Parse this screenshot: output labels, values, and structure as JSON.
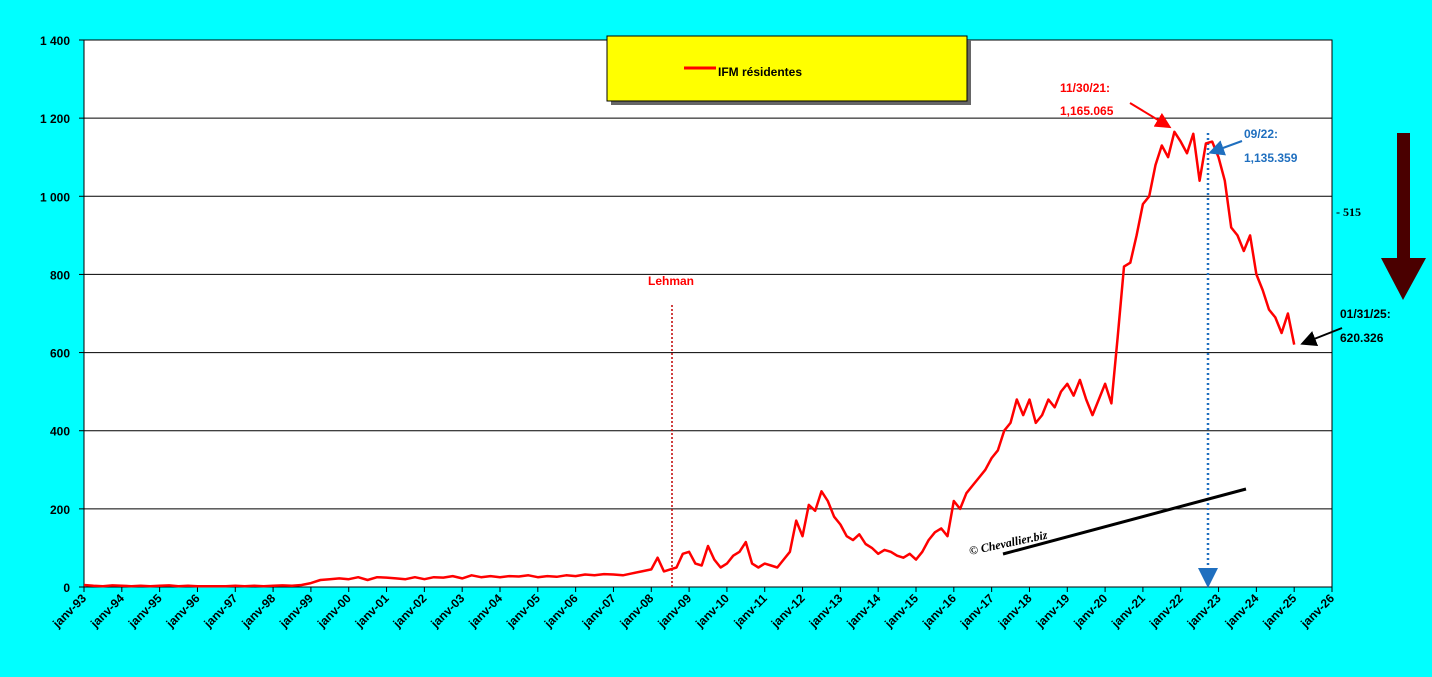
{
  "chart_data": {
    "type": "line",
    "legend": "IFM résidentes",
    "series": [
      {
        "name": "IFM résidentes",
        "color": "#ff0000",
        "x": [
          "1993-01",
          "1993-04",
          "1993-07",
          "1993-10",
          "1994-01",
          "1994-04",
          "1994-07",
          "1994-10",
          "1995-01",
          "1995-04",
          "1995-07",
          "1995-10",
          "1996-01",
          "1996-04",
          "1996-07",
          "1996-10",
          "1997-01",
          "1997-04",
          "1997-07",
          "1997-10",
          "1998-01",
          "1998-04",
          "1998-07",
          "1998-10",
          "1999-01",
          "1999-04",
          "1999-07",
          "1999-10",
          "2000-01",
          "2000-04",
          "2000-07",
          "2000-10",
          "2001-01",
          "2001-04",
          "2001-07",
          "2001-10",
          "2002-01",
          "2002-04",
          "2002-07",
          "2002-10",
          "2003-01",
          "2003-04",
          "2003-07",
          "2003-10",
          "2004-01",
          "2004-04",
          "2004-07",
          "2004-10",
          "2005-01",
          "2005-04",
          "2005-07",
          "2005-10",
          "2006-01",
          "2006-04",
          "2006-07",
          "2006-10",
          "2007-01",
          "2007-04",
          "2007-07",
          "2007-10",
          "2008-01",
          "2008-03",
          "2008-05",
          "2008-07",
          "2008-09",
          "2008-11",
          "2009-01",
          "2009-03",
          "2009-05",
          "2009-07",
          "2009-09",
          "2009-11",
          "2010-01",
          "2010-03",
          "2010-05",
          "2010-07",
          "2010-09",
          "2010-11",
          "2011-01",
          "2011-03",
          "2011-05",
          "2011-07",
          "2011-09",
          "2011-11",
          "2012-01",
          "2012-03",
          "2012-05",
          "2012-07",
          "2012-09",
          "2012-11",
          "2013-01",
          "2013-03",
          "2013-05",
          "2013-07",
          "2013-09",
          "2013-11",
          "2014-01",
          "2014-03",
          "2014-05",
          "2014-07",
          "2014-09",
          "2014-11",
          "2015-01",
          "2015-03",
          "2015-05",
          "2015-07",
          "2015-09",
          "2015-11",
          "2016-01",
          "2016-03",
          "2016-05",
          "2016-07",
          "2016-09",
          "2016-11",
          "2017-01",
          "2017-03",
          "2017-05",
          "2017-07",
          "2017-09",
          "2017-11",
          "2018-01",
          "2018-03",
          "2018-05",
          "2018-07",
          "2018-09",
          "2018-11",
          "2019-01",
          "2019-03",
          "2019-05",
          "2019-07",
          "2019-09",
          "2019-11",
          "2020-01",
          "2020-03",
          "2020-05",
          "2020-07",
          "2020-09",
          "2020-11",
          "2021-01",
          "2021-03",
          "2021-05",
          "2021-07",
          "2021-09",
          "2021-11",
          "2022-01",
          "2022-03",
          "2022-05",
          "2022-07",
          "2022-09",
          "2022-11",
          "2023-01",
          "2023-03",
          "2023-05",
          "2023-07",
          "2023-09",
          "2023-11",
          "2024-01",
          "2024-03",
          "2024-05",
          "2024-07",
          "2024-09",
          "2024-11",
          "2025-01"
        ],
        "values": [
          5,
          3,
          2,
          4,
          3,
          2,
          3,
          2,
          3,
          4,
          2,
          3,
          2,
          2,
          2,
          2,
          3,
          2,
          3,
          2,
          3,
          4,
          3,
          5,
          10,
          18,
          20,
          22,
          20,
          25,
          18,
          25,
          24,
          22,
          20,
          25,
          20,
          25,
          24,
          28,
          22,
          30,
          25,
          28,
          25,
          28,
          27,
          30,
          25,
          28,
          26,
          30,
          28,
          32,
          30,
          33,
          32,
          30,
          35,
          40,
          45,
          75,
          40,
          45,
          50,
          85,
          90,
          60,
          55,
          105,
          70,
          50,
          60,
          80,
          90,
          115,
          60,
          50,
          60,
          55,
          50,
          70,
          90,
          170,
          130,
          210,
          195,
          245,
          220,
          180,
          160,
          130,
          120,
          135,
          110,
          100,
          85,
          95,
          90,
          80,
          75,
          85,
          70,
          90,
          120,
          140,
          150,
          130,
          220,
          200,
          240,
          260,
          280,
          300,
          330,
          350,
          400,
          420,
          480,
          440,
          480,
          420,
          440,
          480,
          460,
          500,
          520,
          490,
          530,
          480,
          440,
          480,
          520,
          470,
          640,
          820,
          830,
          900,
          980,
          1000,
          1080,
          1130,
          1100,
          1165.065,
          1140,
          1110,
          1160,
          1040,
          1135.359,
          1140,
          1100,
          1040,
          920,
          900,
          860,
          900,
          800,
          760,
          710,
          690,
          650,
          700,
          620.326
        ]
      }
    ],
    "xlim": [
      "1993-01",
      "2026-01"
    ],
    "xticks": [
      {
        "value": "1993-01",
        "label": "janv-93"
      },
      {
        "value": "1994-01",
        "label": "janv-94"
      },
      {
        "value": "1995-01",
        "label": "janv-95"
      },
      {
        "value": "1996-01",
        "label": "janv-96"
      },
      {
        "value": "1997-01",
        "label": "janv-97"
      },
      {
        "value": "1998-01",
        "label": "janv-98"
      },
      {
        "value": "1999-01",
        "label": "janv-99"
      },
      {
        "value": "2000-01",
        "label": "janv-00"
      },
      {
        "value": "2001-01",
        "label": "janv-01"
      },
      {
        "value": "2002-01",
        "label": "janv-02"
      },
      {
        "value": "2003-01",
        "label": "janv-03"
      },
      {
        "value": "2004-01",
        "label": "janv-04"
      },
      {
        "value": "2005-01",
        "label": "janv-05"
      },
      {
        "value": "2006-01",
        "label": "janv-06"
      },
      {
        "value": "2007-01",
        "label": "janv-07"
      },
      {
        "value": "2008-01",
        "label": "janv-08"
      },
      {
        "value": "2009-01",
        "label": "janv-09"
      },
      {
        "value": "2010-01",
        "label": "janv-10"
      },
      {
        "value": "2011-01",
        "label": "janv-11"
      },
      {
        "value": "2012-01",
        "label": "janv-12"
      },
      {
        "value": "2013-01",
        "label": "janv-13"
      },
      {
        "value": "2014-01",
        "label": "janv-14"
      },
      {
        "value": "2015-01",
        "label": "janv-15"
      },
      {
        "value": "2016-01",
        "label": "janv-16"
      },
      {
        "value": "2017-01",
        "label": "janv-17"
      },
      {
        "value": "2018-01",
        "label": "janv-18"
      },
      {
        "value": "2019-01",
        "label": "janv-19"
      },
      {
        "value": "2020-01",
        "label": "janv-20"
      },
      {
        "value": "2021-01",
        "label": "janv-21"
      },
      {
        "value": "2022-01",
        "label": "janv-22"
      },
      {
        "value": "2023-01",
        "label": "janv-23"
      },
      {
        "value": "2024-01",
        "label": "janv-24"
      },
      {
        "value": "2025-01",
        "label": "janv-25"
      },
      {
        "value": "2026-01",
        "label": "janv-26"
      }
    ],
    "ylim": [
      0,
      1400
    ],
    "yticks": [
      0,
      200,
      400,
      600,
      800,
      {
        "value": 1000,
        "label": "1 000"
      },
      {
        "value": 1200,
        "label": "1 200"
      },
      {
        "value": 1400,
        "label": "1 400"
      }
    ],
    "grid": true,
    "annotations": {
      "lehman": "Lehman",
      "peak_date": "11/30/21:",
      "peak_value": "1,165.065",
      "sep_date": "09/22:",
      "sep_value": "1,135.359",
      "last_date": "01/31/25:",
      "last_value": "620.326",
      "drop": "- 515",
      "watermark": "© Chevallier.biz"
    }
  }
}
